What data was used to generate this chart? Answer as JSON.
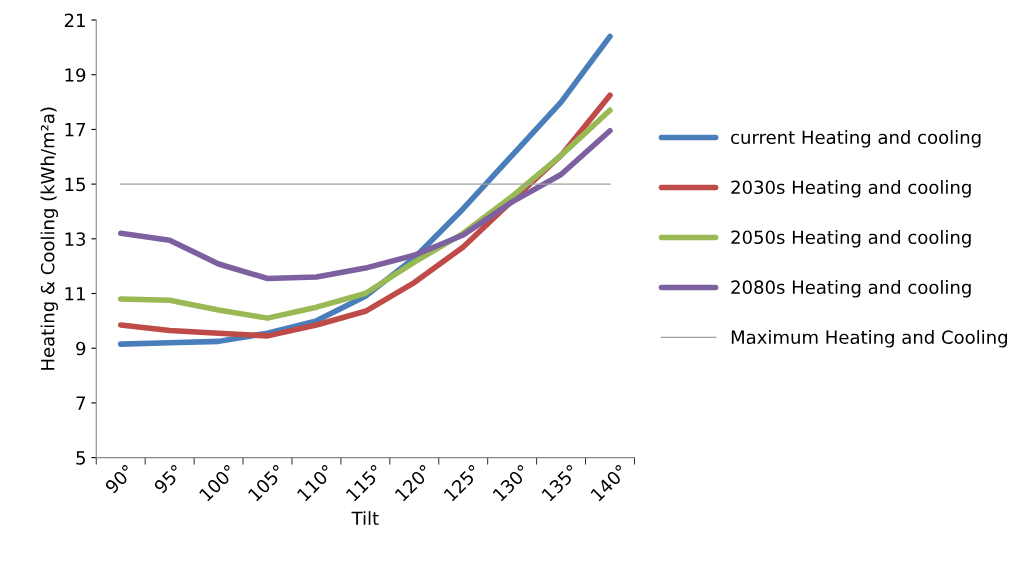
{
  "chart_data": {
    "type": "line",
    "xlabel": "Tilt",
    "ylabel": "Heating & Cooling (kWh/m²a)",
    "categories": [
      "90°",
      "95°",
      "100°",
      "105°",
      "110°",
      "115°",
      "120°",
      "125°",
      "130°",
      "135°",
      "140°"
    ],
    "series": [
      {
        "name": "current Heating and cooling",
        "color": "#4a7ebb",
        "values": [
          9.15,
          9.2,
          9.25,
          9.55,
          10.0,
          10.9,
          12.3,
          14.1,
          16.05,
          18.0,
          20.4
        ]
      },
      {
        "name": "2030s Heating and cooling",
        "color": "#be4b48",
        "values": [
          9.85,
          9.65,
          9.55,
          9.45,
          9.85,
          10.35,
          11.4,
          12.7,
          14.4,
          16.05,
          18.25
        ]
      },
      {
        "name": "2050s Heating and cooling",
        "color": "#98b954",
        "values": [
          10.8,
          10.75,
          10.4,
          10.1,
          10.5,
          11.0,
          12.15,
          13.2,
          14.55,
          16.05,
          17.7
        ]
      },
      {
        "name": "2080s Heating and cooling",
        "color": "#7d60a0",
        "values": [
          13.2,
          12.95,
          12.08,
          11.55,
          11.6,
          11.93,
          12.4,
          13.14,
          14.35,
          15.35,
          16.95
        ]
      }
    ],
    "ref_lines": [
      {
        "axis": "y",
        "value": 15,
        "label": "Maximum Heating and Cooling",
        "color": "#a0a0a0"
      }
    ],
    "ylim": [
      5,
      21
    ],
    "yticks": [
      5,
      7,
      9,
      11,
      13,
      15,
      17,
      19,
      21
    ],
    "grid": false,
    "legend": "right",
    "marker": "none"
  }
}
